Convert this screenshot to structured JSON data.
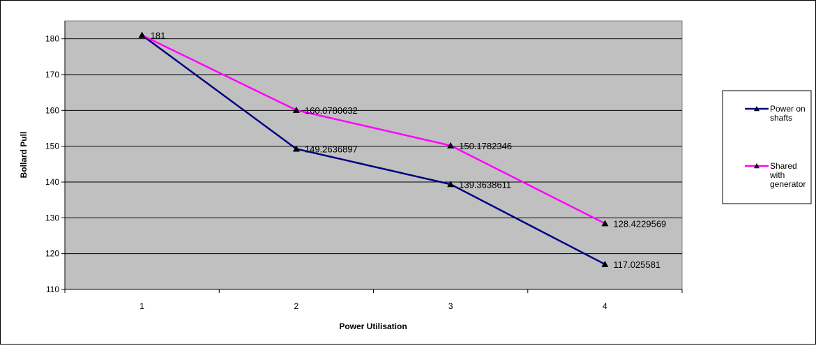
{
  "chart_data": {
    "type": "line",
    "title": "",
    "xlabel": "Power Utilisation",
    "ylabel": "Bollard Pull",
    "categories": [
      "1",
      "2",
      "3",
      "4"
    ],
    "ylim": [
      110,
      185
    ],
    "yticks": [
      110,
      120,
      130,
      140,
      150,
      160,
      170,
      180
    ],
    "grid": true,
    "plot_background": "#C0C0C0",
    "legend_position": "right",
    "series": [
      {
        "name_lines": [
          "Power on",
          "shafts"
        ],
        "color": "#000080",
        "values": [
          181,
          149.2636897,
          139.3638611,
          117.025581
        ],
        "labels": [
          "181",
          "149.2636897",
          "139.3638611",
          "117.025581"
        ]
      },
      {
        "name_lines": [
          "Shared",
          "with",
          "generator"
        ],
        "color": "#FF00FF",
        "values": [
          181,
          160.0780632,
          150.1782346,
          128.4229569
        ],
        "labels": [
          "",
          "160.0780632",
          "150.1782346",
          "128.4229569"
        ]
      }
    ]
  }
}
